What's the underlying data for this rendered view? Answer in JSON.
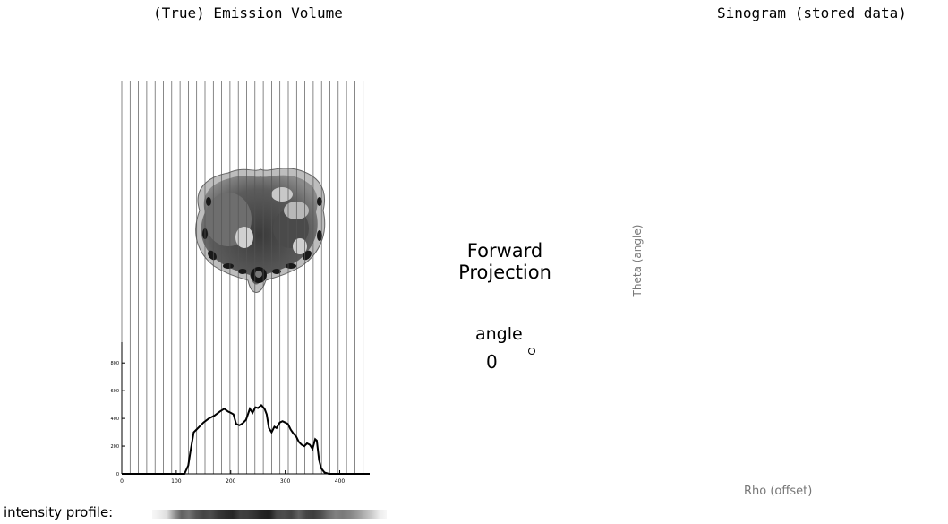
{
  "left_panel": {
    "title": "(True) Emission Volume",
    "image": "axial-ct-slice-abdomen"
  },
  "right_panel": {
    "title": "Sinogram (stored data)",
    "y_label": "Theta (angle)",
    "x_label": "Rho (offset)"
  },
  "center": {
    "operation_label": "Forward Projection",
    "angle_label": "angle",
    "angle_value": "0"
  },
  "intensity_profile_label": "intensity profile:",
  "chart_data": {
    "type": "line",
    "x_ticks": [
      "0",
      "100",
      "200",
      "300",
      "400"
    ],
    "y_ticks": [
      "0",
      "200",
      "400",
      "600",
      "800"
    ],
    "xlim": [
      0,
      455
    ],
    "ylim": [
      0,
      950
    ],
    "x": [
      0,
      115,
      122,
      126,
      132,
      140,
      150,
      160,
      170,
      180,
      188,
      195,
      200,
      205,
      210,
      216,
      222,
      228,
      235,
      240,
      245,
      250,
      256,
      262,
      266,
      270,
      275,
      280,
      284,
      290,
      295,
      300,
      305,
      310,
      315,
      320,
      325,
      330,
      335,
      340,
      345,
      350,
      355,
      358,
      362,
      366,
      372,
      380,
      455
    ],
    "y": [
      0,
      0,
      60,
      160,
      300,
      330,
      370,
      400,
      420,
      450,
      470,
      450,
      440,
      430,
      360,
      350,
      365,
      390,
      470,
      440,
      480,
      475,
      495,
      470,
      430,
      330,
      300,
      340,
      330,
      370,
      380,
      370,
      360,
      320,
      290,
      270,
      230,
      210,
      200,
      220,
      210,
      180,
      250,
      240,
      100,
      40,
      10,
      0,
      0
    ]
  },
  "intensity_profile": [
    0.97,
    0.93,
    0.87,
    0.6,
    0.38,
    0.45,
    0.33,
    0.27,
    0.3,
    0.22,
    0.18,
    0.15,
    0.25,
    0.24,
    0.2,
    0.14,
    0.12,
    0.28,
    0.3,
    0.26,
    0.38,
    0.27,
    0.24,
    0.3,
    0.42,
    0.5,
    0.48,
    0.52,
    0.6,
    0.7,
    0.8,
    0.92,
    0.97
  ]
}
